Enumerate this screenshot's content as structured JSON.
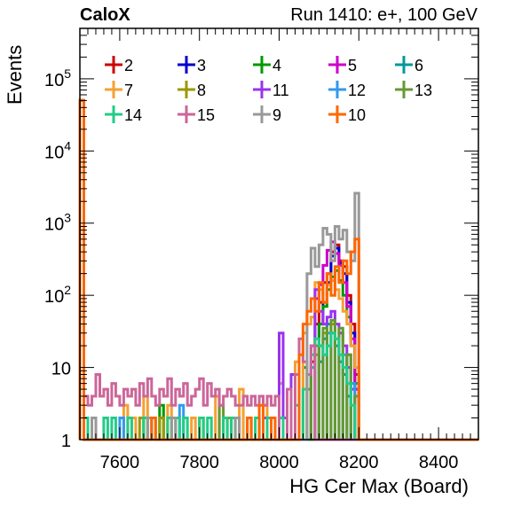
{
  "header": {
    "brand": "CaloX",
    "run_info": "Run 1410: e+, 100 GeV"
  },
  "chart_data": {
    "type": "line",
    "xlabel": "HG Cer Max (Board)",
    "ylabel": "Events",
    "xlim": [
      7500,
      8500
    ],
    "ylim": [
      1,
      500000
    ],
    "y_scale": "log",
    "bin_width": 10,
    "x_ticks": [
      7600,
      7800,
      8000,
      8200,
      8400
    ],
    "y_ticks": [
      {
        "value": 1,
        "base": "1",
        "exp": ""
      },
      {
        "value": 10,
        "base": "10",
        "exp": ""
      },
      {
        "value": 100,
        "base": "10",
        "exp": "2"
      },
      {
        "value": 1000,
        "base": "10",
        "exp": "3"
      },
      {
        "value": 10000,
        "base": "10",
        "exp": "4"
      },
      {
        "value": 100000,
        "base": "10",
        "exp": "5"
      }
    ],
    "grid": false,
    "legend_position": "top",
    "series": [
      {
        "name": "2",
        "color": "#cc0000",
        "bins": [
          [
            7500,
            50000
          ],
          [
            8080,
            12
          ],
          [
            8090,
            40
          ],
          [
            8100,
            80
          ],
          [
            8110,
            150
          ],
          [
            8120,
            200
          ],
          [
            8130,
            400
          ],
          [
            8140,
            500
          ],
          [
            8150,
            300
          ],
          [
            8160,
            250
          ],
          [
            8170,
            100
          ],
          [
            8180,
            40
          ],
          [
            8190,
            8
          ]
        ]
      },
      {
        "name": "3",
        "color": "#0000cc",
        "bins": [
          [
            7500,
            50000
          ],
          [
            8100,
            40
          ],
          [
            8110,
            80
          ],
          [
            8120,
            150
          ],
          [
            8130,
            350
          ],
          [
            8140,
            450
          ],
          [
            8150,
            280
          ],
          [
            8160,
            200
          ],
          [
            8170,
            80
          ],
          [
            8180,
            30
          ],
          [
            8190,
            5
          ]
        ]
      },
      {
        "name": "4",
        "color": "#009900",
        "bins": [
          [
            7500,
            50000
          ],
          [
            7700,
            3
          ],
          [
            8060,
            10
          ],
          [
            8080,
            20
          ],
          [
            8100,
            40
          ],
          [
            8110,
            70
          ],
          [
            8120,
            120
          ],
          [
            8130,
            180
          ],
          [
            8140,
            220
          ],
          [
            8150,
            160
          ],
          [
            8160,
            100
          ],
          [
            8170,
            50
          ],
          [
            8180,
            20
          ],
          [
            8190,
            6
          ]
        ]
      },
      {
        "name": "5",
        "color": "#cc00cc",
        "bins": [
          [
            7500,
            50000
          ],
          [
            8090,
            90
          ],
          [
            8100,
            140
          ],
          [
            8110,
            260
          ],
          [
            8120,
            420
          ],
          [
            8130,
            550
          ],
          [
            8140,
            380
          ],
          [
            8150,
            260
          ],
          [
            8160,
            150
          ],
          [
            8170,
            70
          ],
          [
            8180,
            25
          ],
          [
            8190,
            5
          ]
        ]
      },
      {
        "name": "6",
        "color": "#009999",
        "bins": [
          [
            7500,
            50000
          ],
          [
            8100,
            12
          ],
          [
            8110,
            25
          ],
          [
            8120,
            40
          ],
          [
            8130,
            30
          ],
          [
            8140,
            20
          ],
          [
            8150,
            12
          ],
          [
            8160,
            8
          ],
          [
            8170,
            4
          ]
        ]
      },
      {
        "name": "7",
        "color": "#f5a033",
        "bins": [
          [
            7500,
            50000
          ],
          [
            7610,
            3
          ],
          [
            7630,
            2
          ],
          [
            7660,
            4
          ],
          [
            7720,
            3
          ],
          [
            7780,
            2
          ],
          [
            7840,
            4
          ],
          [
            7900,
            5
          ],
          [
            7960,
            3
          ],
          [
            8000,
            6
          ],
          [
            8040,
            12
          ],
          [
            8060,
            30
          ],
          [
            8070,
            40
          ],
          [
            8080,
            50
          ],
          [
            8090,
            150
          ],
          [
            8100,
            120
          ],
          [
            8110,
            80
          ],
          [
            8120,
            140
          ],
          [
            8130,
            160
          ],
          [
            8140,
            120
          ],
          [
            8150,
            90
          ],
          [
            8160,
            60
          ],
          [
            8170,
            40
          ],
          [
            8180,
            20
          ],
          [
            8190,
            10
          ]
        ]
      },
      {
        "name": "8",
        "color": "#999900",
        "bins": [
          [
            7500,
            50000
          ],
          [
            7650,
            2
          ],
          [
            7700,
            2
          ],
          [
            7800,
            2
          ],
          [
            7870,
            2
          ],
          [
            8070,
            5
          ],
          [
            8090,
            15
          ],
          [
            8110,
            30
          ],
          [
            8130,
            40
          ],
          [
            8150,
            30
          ],
          [
            8170,
            15
          ],
          [
            8190,
            4
          ]
        ]
      },
      {
        "name": "11",
        "color": "#9933ee",
        "bins": [
          [
            7500,
            50000
          ],
          [
            7960,
            2
          ],
          [
            8000,
            30
          ],
          [
            8010,
            2
          ],
          [
            8030,
            8
          ],
          [
            8080,
            20
          ],
          [
            8090,
            120
          ],
          [
            8100,
            60
          ],
          [
            8110,
            40
          ],
          [
            8120,
            50
          ],
          [
            8130,
            60
          ],
          [
            8140,
            40
          ],
          [
            8150,
            30
          ],
          [
            8160,
            20
          ],
          [
            8170,
            10
          ],
          [
            8180,
            5
          ]
        ]
      },
      {
        "name": "12",
        "color": "#3399ee",
        "bins": [
          [
            7500,
            50000
          ],
          [
            7600,
            2
          ],
          [
            7750,
            3
          ],
          [
            8080,
            10
          ],
          [
            8100,
            20
          ],
          [
            8120,
            30
          ],
          [
            8140,
            25
          ],
          [
            8160,
            15
          ],
          [
            8180,
            6
          ]
        ]
      },
      {
        "name": "13",
        "color": "#669933",
        "bins": [
          [
            7500,
            50000
          ],
          [
            7850,
            3
          ],
          [
            7920,
            2
          ],
          [
            8070,
            8
          ],
          [
            8090,
            20
          ],
          [
            8110,
            35
          ],
          [
            8130,
            45
          ],
          [
            8150,
            35
          ],
          [
            8170,
            15
          ],
          [
            8190,
            4
          ]
        ]
      },
      {
        "name": "14",
        "color": "#22cc88",
        "bins": [
          [
            7500,
            50000
          ],
          [
            7510,
            2
          ],
          [
            7560,
            2
          ],
          [
            7580,
            2
          ],
          [
            7620,
            2
          ],
          [
            7660,
            2
          ],
          [
            7680,
            2
          ],
          [
            7720,
            2
          ],
          [
            7740,
            2
          ],
          [
            7760,
            2
          ],
          [
            7800,
            2
          ],
          [
            7820,
            2
          ],
          [
            7860,
            2
          ],
          [
            7880,
            2
          ],
          [
            7940,
            2
          ],
          [
            7970,
            2
          ],
          [
            8000,
            2
          ],
          [
            8040,
            3
          ],
          [
            8060,
            5
          ],
          [
            8070,
            8
          ],
          [
            8080,
            15
          ],
          [
            8090,
            25
          ],
          [
            8100,
            20
          ],
          [
            8110,
            15
          ],
          [
            8120,
            20
          ],
          [
            8130,
            30
          ],
          [
            8140,
            25
          ],
          [
            8150,
            15
          ],
          [
            8160,
            10
          ],
          [
            8170,
            6
          ],
          [
            8180,
            3
          ]
        ]
      },
      {
        "name": "15",
        "color": "#cc6699",
        "bins": [
          [
            7500,
            50000
          ],
          [
            7510,
            4
          ],
          [
            7520,
            3
          ],
          [
            7530,
            4
          ],
          [
            7540,
            8
          ],
          [
            7550,
            4
          ],
          [
            7560,
            5
          ],
          [
            7570,
            3
          ],
          [
            7580,
            6
          ],
          [
            7590,
            4
          ],
          [
            7600,
            3
          ],
          [
            7610,
            5
          ],
          [
            7620,
            4
          ],
          [
            7630,
            5
          ],
          [
            7640,
            3
          ],
          [
            7650,
            6
          ],
          [
            7660,
            4
          ],
          [
            7670,
            7
          ],
          [
            7680,
            4
          ],
          [
            7690,
            3
          ],
          [
            7700,
            5
          ],
          [
            7710,
            4
          ],
          [
            7720,
            7
          ],
          [
            7730,
            3
          ],
          [
            7740,
            5
          ],
          [
            7750,
            4
          ],
          [
            7760,
            6
          ],
          [
            7770,
            3
          ],
          [
            7780,
            4
          ],
          [
            7790,
            5
          ],
          [
            7800,
            7
          ],
          [
            7810,
            3
          ],
          [
            7820,
            6
          ],
          [
            7830,
            4
          ],
          [
            7840,
            5
          ],
          [
            7850,
            3
          ],
          [
            7860,
            4
          ],
          [
            7870,
            5
          ],
          [
            7880,
            4
          ],
          [
            7890,
            3
          ],
          [
            7900,
            3
          ],
          [
            7910,
            4
          ],
          [
            7920,
            3
          ],
          [
            7930,
            4
          ],
          [
            7940,
            3
          ],
          [
            7950,
            4
          ],
          [
            7960,
            3
          ],
          [
            7970,
            4
          ],
          [
            7980,
            3
          ],
          [
            7990,
            4
          ],
          [
            8020,
            5
          ],
          [
            8040,
            8
          ],
          [
            8050,
            25
          ],
          [
            8060,
            12
          ],
          [
            8070,
            8
          ],
          [
            8080,
            20
          ]
        ]
      },
      {
        "name": "9",
        "color": "#999999",
        "bins": [
          [
            7500,
            50000
          ],
          [
            7530,
            2
          ],
          [
            7670,
            2
          ],
          [
            7730,
            2
          ],
          [
            7890,
            2
          ],
          [
            8070,
            200
          ],
          [
            8080,
            450
          ],
          [
            8090,
            250
          ],
          [
            8100,
            500
          ],
          [
            8110,
            850
          ],
          [
            8120,
            700
          ],
          [
            8130,
            300
          ],
          [
            8140,
            900
          ],
          [
            8150,
            600
          ],
          [
            8160,
            800
          ],
          [
            8170,
            400
          ],
          [
            8180,
            300
          ],
          [
            8190,
            2600
          ]
        ]
      },
      {
        "name": "10",
        "color": "#ff6600",
        "bins": [
          [
            7500,
            50000
          ],
          [
            7680,
            2
          ],
          [
            7920,
            2
          ],
          [
            7950,
            3
          ],
          [
            7980,
            2
          ],
          [
            8050,
            15
          ],
          [
            8060,
            40
          ],
          [
            8070,
            60
          ],
          [
            8080,
            90
          ],
          [
            8090,
            60
          ],
          [
            8100,
            150
          ],
          [
            8110,
            80
          ],
          [
            8120,
            200
          ],
          [
            8130,
            100
          ],
          [
            8140,
            250
          ],
          [
            8150,
            150
          ],
          [
            8160,
            300
          ],
          [
            8170,
            200
          ],
          [
            8180,
            400
          ],
          [
            8190,
            600
          ]
        ]
      }
    ]
  }
}
